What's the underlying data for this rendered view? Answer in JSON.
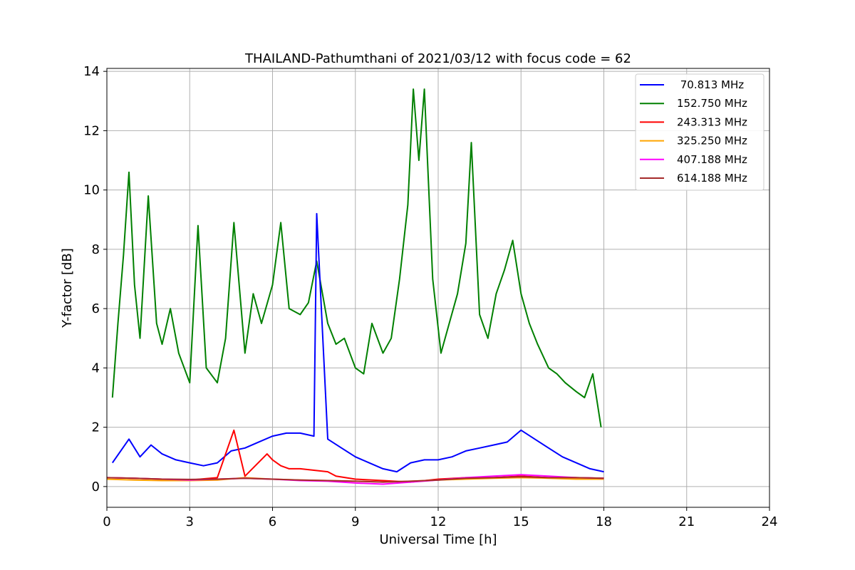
{
  "chart_data": {
    "type": "line",
    "title": "THAILAND-Pathumthani of 2021/03/12 with focus code = 62",
    "xlabel": "Universal Time [h]",
    "ylabel": "Y-factor [dB]",
    "xlim": [
      0,
      24
    ],
    "ylim": [
      -0.7,
      14.1
    ],
    "xticks": [
      "0",
      "3",
      "6",
      "9",
      "12",
      "15",
      "18",
      "21",
      "24"
    ],
    "yticks": [
      "0",
      "2",
      "4",
      "6",
      "8",
      "10",
      "12",
      "14"
    ],
    "grid": true,
    "legend_position": "top-right",
    "series": [
      {
        "name": " 70.813 MHz",
        "color": "#0000ff",
        "x": [
          0.2,
          0.5,
          0.8,
          1.2,
          1.6,
          2.0,
          2.5,
          3.0,
          3.5,
          4.0,
          4.5,
          5.0,
          5.5,
          6.0,
          6.5,
          7.0,
          7.5,
          7.6,
          8.0,
          8.5,
          9.0,
          9.5,
          10.0,
          10.5,
          11.0,
          11.5,
          12.0,
          12.5,
          13.0,
          13.5,
          14.0,
          14.5,
          15.0,
          15.5,
          16.0,
          16.5,
          17.0,
          17.5,
          18.0
        ],
        "y": [
          0.8,
          1.2,
          1.6,
          1.0,
          1.4,
          1.1,
          0.9,
          0.8,
          0.7,
          0.8,
          1.2,
          1.3,
          1.5,
          1.7,
          1.8,
          1.8,
          1.7,
          9.2,
          1.6,
          1.3,
          1.0,
          0.8,
          0.6,
          0.5,
          0.8,
          0.9,
          0.9,
          1.0,
          1.2,
          1.3,
          1.4,
          1.5,
          1.9,
          1.6,
          1.3,
          1.0,
          0.8,
          0.6,
          0.5
        ]
      },
      {
        "name": "152.750 MHz",
        "color": "#008000",
        "x": [
          0.2,
          0.4,
          0.6,
          0.8,
          1.0,
          1.2,
          1.5,
          1.8,
          2.0,
          2.3,
          2.6,
          3.0,
          3.3,
          3.6,
          4.0,
          4.3,
          4.6,
          5.0,
          5.3,
          5.6,
          6.0,
          6.3,
          6.6,
          7.0,
          7.3,
          7.6,
          8.0,
          8.3,
          8.6,
          9.0,
          9.3,
          9.6,
          10.0,
          10.3,
          10.6,
          10.9,
          11.1,
          11.3,
          11.5,
          11.8,
          12.1,
          12.4,
          12.7,
          13.0,
          13.2,
          13.5,
          13.8,
          14.1,
          14.4,
          14.7,
          15.0,
          15.3,
          15.6,
          16.0,
          16.3,
          16.6,
          17.0,
          17.3,
          17.6,
          17.9
        ],
        "y": [
          3.0,
          5.5,
          7.8,
          10.6,
          6.8,
          5.0,
          9.8,
          5.5,
          4.8,
          6.0,
          4.5,
          3.5,
          8.8,
          4.0,
          3.5,
          5.0,
          8.9,
          4.5,
          6.5,
          5.5,
          6.8,
          8.9,
          6.0,
          5.8,
          6.2,
          7.6,
          5.5,
          4.8,
          5.0,
          4.0,
          3.8,
          5.5,
          4.5,
          5.0,
          7.0,
          9.5,
          13.4,
          11.0,
          13.4,
          7.0,
          4.5,
          5.5,
          6.5,
          8.2,
          11.6,
          5.8,
          5.0,
          6.5,
          7.3,
          8.3,
          6.5,
          5.5,
          4.8,
          4.0,
          3.8,
          3.5,
          3.2,
          3.0,
          3.8,
          2.0
        ]
      },
      {
        "name": "243.313 MHz",
        "color": "#ff0000",
        "x": [
          0,
          1,
          2,
          3,
          4,
          4.6,
          5,
          5.8,
          6.0,
          6.3,
          6.6,
          7.0,
          7.5,
          8.0,
          8.3,
          9,
          10,
          11,
          12,
          13,
          14,
          15,
          16,
          17,
          18
        ],
        "y": [
          0.3,
          0.28,
          0.25,
          0.22,
          0.3,
          1.9,
          0.35,
          1.1,
          0.9,
          0.7,
          0.6,
          0.6,
          0.55,
          0.5,
          0.35,
          0.25,
          0.2,
          0.15,
          0.25,
          0.3,
          0.3,
          0.35,
          0.3,
          0.3,
          0.28
        ]
      },
      {
        "name": "325.250 MHz",
        "color": "#ffa500",
        "x": [
          0,
          1,
          2,
          3,
          4,
          5,
          6,
          7,
          8,
          9,
          10,
          11,
          12,
          13,
          14,
          15,
          16,
          17,
          18
        ],
        "y": [
          0.25,
          0.22,
          0.2,
          0.2,
          0.22,
          0.3,
          0.25,
          0.22,
          0.2,
          0.18,
          0.15,
          0.18,
          0.22,
          0.25,
          0.28,
          0.3,
          0.28,
          0.25,
          0.25
        ]
      },
      {
        "name": "407.188 MHz",
        "color": "#ff00ff",
        "x": [
          0,
          1,
          2,
          3,
          4,
          5,
          6,
          7,
          8,
          9,
          10,
          11,
          12,
          13,
          14,
          15,
          16,
          17,
          18
        ],
        "y": [
          0.3,
          0.28,
          0.25,
          0.22,
          0.25,
          0.28,
          0.25,
          0.2,
          0.18,
          0.12,
          0.08,
          0.15,
          0.22,
          0.3,
          0.35,
          0.4,
          0.35,
          0.3,
          0.28
        ]
      },
      {
        "name": "614.188 MHz",
        "color": "#a52a2a",
        "x": [
          0,
          1,
          2,
          3,
          4,
          5,
          6,
          7,
          8,
          9,
          10,
          11,
          12,
          13,
          14,
          15,
          16,
          17,
          18
        ],
        "y": [
          0.3,
          0.28,
          0.25,
          0.24,
          0.25,
          0.28,
          0.25,
          0.22,
          0.2,
          0.18,
          0.15,
          0.18,
          0.22,
          0.28,
          0.3,
          0.33,
          0.3,
          0.3,
          0.28
        ]
      }
    ]
  }
}
